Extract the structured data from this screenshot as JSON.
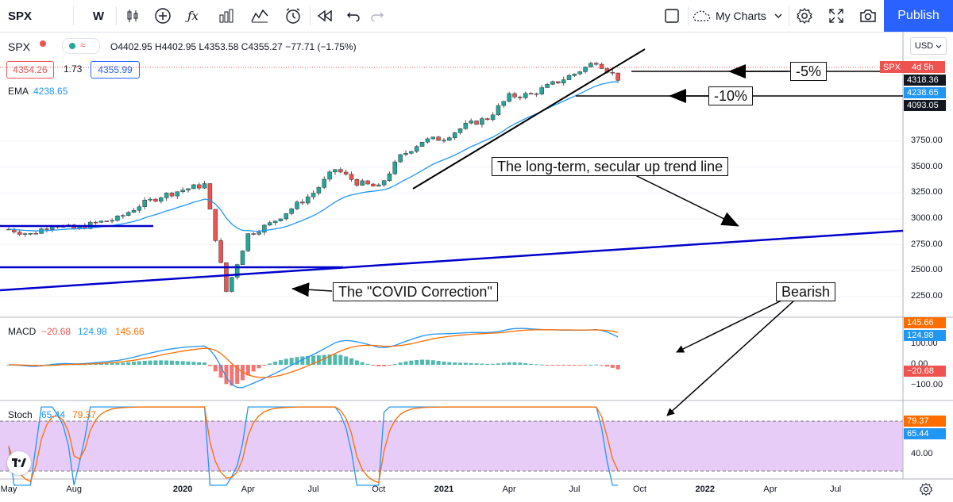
{
  "toolbar": {
    "symbol": "SPX",
    "interval": "W",
    "my_charts": "My Charts",
    "publish": "Publish",
    "icons": [
      "candles-icon",
      "add-indicator-icon",
      "fx-icon",
      "templates-icon",
      "compare-icon",
      "alert-icon",
      "replay-icon",
      "undo-icon",
      "redo-icon",
      "layout-icon",
      "cloud-icon",
      "gear-icon",
      "fullscreen-icon",
      "camera-icon"
    ]
  },
  "legend": {
    "symbol": "SPX",
    "ohlc": "O4402.95 H4402.95 L4353.58 C4355.27 −77.71 (−1.75%)",
    "bid": "4354.26",
    "spread": "1.73",
    "ask": "4355.99",
    "ema_label": "EMA",
    "ema_value": "4238.65",
    "currency": "USD",
    "badge_symbol": "SPX",
    "badge_time": "4d 5h"
  },
  "price_labels": {
    "p1": "4318.36",
    "p2": "4238.65",
    "p3": "4093.05"
  },
  "macd_legend": {
    "label": "MACD",
    "hist": "−20.68",
    "macd": "124.98",
    "signal": "145.66"
  },
  "macd_labels": {
    "signal": "145.66",
    "macd": "124.98",
    "hist": "−20.68"
  },
  "stoch_legend": {
    "label": "Stoch",
    "k": "65.44",
    "d": "79.37"
  },
  "stoch_labels": {
    "d": "79.37",
    "k": "65.44"
  },
  "callouts": {
    "minus5": "-5%",
    "minus10": "-10%",
    "trend": "The long-term, secular up trend line",
    "covid": "The \"COVID Correction\"",
    "bearish": "Bearish"
  },
  "y_axis_price": [
    "4093.05",
    "3750.00",
    "3500.00",
    "3250.00",
    "3000.00",
    "2750.00",
    "2500.00",
    "2250.00"
  ],
  "y_axis_macd": [
    "100.00",
    "0.00",
    "−100.00"
  ],
  "y_axis_stoch": [
    "40.00"
  ],
  "x_axis": [
    "May",
    "Aug",
    "2020",
    "Apr",
    "Jul",
    "Oct",
    "2021",
    "Apr",
    "Jul",
    "Oct",
    "2022",
    "Apr",
    "Jul"
  ],
  "colors": {
    "up": "#26a69a",
    "down": "#ef5350",
    "ema": "#2196f3",
    "macd": "#2196f3",
    "signal": "#ff6d00",
    "stoch_band": "#e1c6f5",
    "trendline": "#0000cc",
    "publish": "#2962ff"
  },
  "chart_data": {
    "type": "candlestick",
    "title": "SPX",
    "interval": "weekly",
    "ylim": [
      2150,
      4560
    ],
    "x_range": [
      "2019-05",
      "2022-08"
    ],
    "ema_last": 4238.65,
    "close_path": [
      {
        "x": "2019-05",
        "y": 2900
      },
      {
        "x": "2019-06",
        "y": 2850
      },
      {
        "x": "2019-07",
        "y": 2950
      },
      {
        "x": "2019-08",
        "y": 2900
      },
      {
        "x": "2019-09",
        "y": 2960
      },
      {
        "x": "2019-10",
        "y": 3000
      },
      {
        "x": "2019-11",
        "y": 3130
      },
      {
        "x": "2019-12",
        "y": 3220
      },
      {
        "x": "2020-01",
        "y": 3280
      },
      {
        "x": "2020-02",
        "y": 3330
      },
      {
        "x": "2020-03",
        "y": 2300
      },
      {
        "x": "2020-04",
        "y": 2850
      },
      {
        "x": "2020-05",
        "y": 2950
      },
      {
        "x": "2020-06",
        "y": 3100
      },
      {
        "x": "2020-07",
        "y": 3250
      },
      {
        "x": "2020-08",
        "y": 3480
      },
      {
        "x": "2020-09",
        "y": 3350
      },
      {
        "x": "2020-10",
        "y": 3300
      },
      {
        "x": "2020-11",
        "y": 3600
      },
      {
        "x": "2020-12",
        "y": 3750
      },
      {
        "x": "2021-01",
        "y": 3780
      },
      {
        "x": "2021-02",
        "y": 3900
      },
      {
        "x": "2021-03",
        "y": 3970
      },
      {
        "x": "2021-04",
        "y": 4180
      },
      {
        "x": "2021-05",
        "y": 4200
      },
      {
        "x": "2021-06",
        "y": 4300
      },
      {
        "x": "2021-07",
        "y": 4400
      },
      {
        "x": "2021-08",
        "y": 4520
      },
      {
        "x": "2021-09",
        "y": 4355
      }
    ],
    "macd_ylim": [
      -150,
      190
    ],
    "stoch_ylim": [
      0,
      100
    ],
    "stoch_band": [
      20,
      80
    ],
    "macd_last": {
      "hist": -20.68,
      "macd": 124.98,
      "signal": 145.66
    },
    "stoch_last": {
      "k": 65.44,
      "d": 79.37
    }
  }
}
